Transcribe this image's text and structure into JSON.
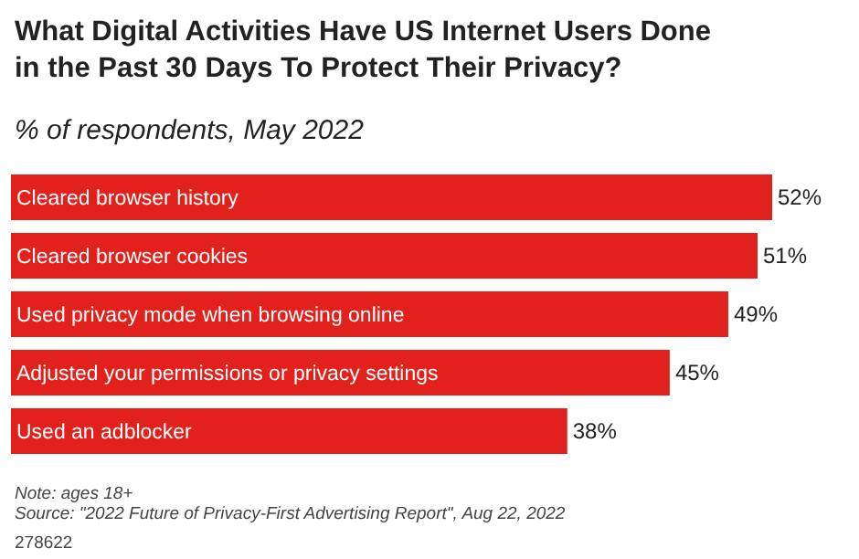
{
  "chart_data": {
    "type": "bar",
    "orientation": "horizontal",
    "title": "What Digital Activities Have US Internet Users Done in the Past 30 Days To Protect Their Privacy?",
    "subtitle": "% of respondents, May 2022",
    "categories": [
      "Cleared browser history",
      "Cleared browser cookies",
      "Used privacy mode when browsing online",
      "Adjusted your permissions or privacy settings",
      "Used an adblocker"
    ],
    "values": [
      52,
      51,
      49,
      45,
      38
    ],
    "value_labels": [
      "52%",
      "51%",
      "49%",
      "45%",
      "38%"
    ],
    "color": "#e3211c",
    "annotations": [
      "Note: ages 18+",
      "Source: \"2022 Future of Privacy-First Advertising Report\", Aug 22, 2022",
      "278622"
    ]
  }
}
